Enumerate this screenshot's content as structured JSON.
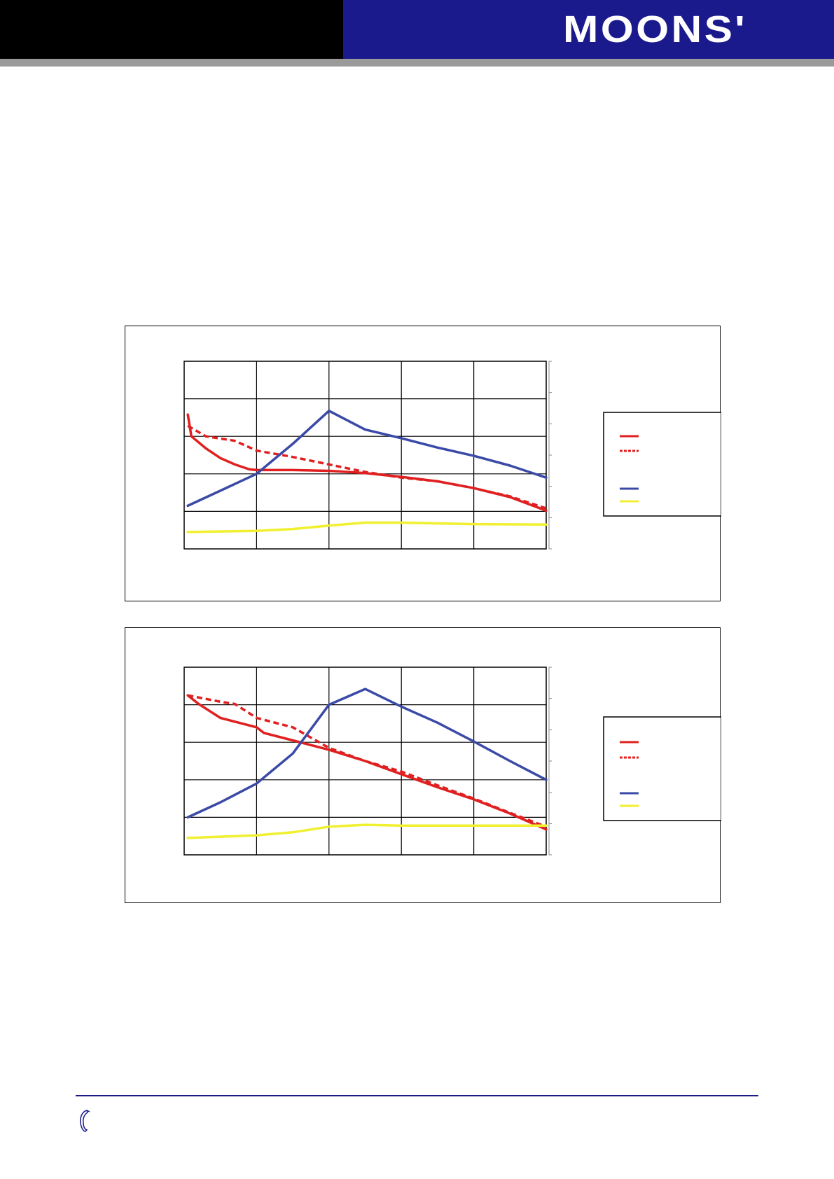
{
  "header": {
    "logo_text": "MOONS'",
    "colors": {
      "left_bar": "#000000",
      "right_bar": "#1a1a8c",
      "rule": "#9a9a9a"
    }
  },
  "footer": {
    "icon": "phone-icon",
    "rule_color": "#1a1a8c"
  },
  "chart_data": [
    {
      "type": "line",
      "title": "",
      "xlabel": "",
      "ylabel": "",
      "x_divisions": 5,
      "y_divisions": 5,
      "right_axis_ticks": 7,
      "grid": true,
      "legend": "right",
      "xlim": [
        0,
        5
      ],
      "ylim": [
        0,
        5
      ],
      "series": [
        {
          "key": "red-solid",
          "color": "#e02020",
          "dash": "solid",
          "points": [
            [
              0.05,
              3.58
            ],
            [
              0.1,
              3.0
            ],
            [
              0.3,
              2.68
            ],
            [
              0.5,
              2.42
            ],
            [
              0.7,
              2.25
            ],
            [
              0.9,
              2.12
            ],
            [
              1.0,
              2.1
            ],
            [
              1.5,
              2.1
            ],
            [
              2.0,
              2.08
            ],
            [
              2.5,
              2.02
            ],
            [
              3.0,
              1.92
            ],
            [
              3.5,
              1.8
            ],
            [
              4.0,
              1.62
            ],
            [
              4.5,
              1.38
            ],
            [
              5.0,
              1.02
            ]
          ]
        },
        {
          "key": "red-dashed",
          "color": "#e02020",
          "dash": "dashed",
          "points": [
            [
              0.05,
              3.28
            ],
            [
              0.3,
              3.0
            ],
            [
              0.7,
              2.88
            ],
            [
              1.0,
              2.62
            ],
            [
              1.5,
              2.45
            ],
            [
              2.0,
              2.25
            ],
            [
              2.5,
              2.05
            ],
            [
              3.0,
              1.9
            ],
            [
              3.5,
              1.8
            ],
            [
              4.0,
              1.62
            ],
            [
              4.5,
              1.4
            ],
            [
              5.0,
              1.08
            ]
          ]
        },
        {
          "key": "blue",
          "color": "#3a4aa6",
          "dash": "solid",
          "points": [
            [
              0.05,
              1.15
            ],
            [
              0.5,
              1.55
            ],
            [
              1.0,
              2.0
            ],
            [
              1.5,
              2.8
            ],
            [
              2.0,
              3.68
            ],
            [
              2.5,
              3.18
            ],
            [
              3.0,
              2.95
            ],
            [
              3.5,
              2.7
            ],
            [
              4.0,
              2.48
            ],
            [
              4.5,
              2.22
            ],
            [
              5.0,
              1.9
            ]
          ]
        },
        {
          "key": "yellow",
          "color": "#f0f030",
          "dash": "solid",
          "points": [
            [
              0.05,
              0.45
            ],
            [
              1.0,
              0.48
            ],
            [
              1.5,
              0.53
            ],
            [
              2.0,
              0.62
            ],
            [
              2.5,
              0.7
            ],
            [
              3.0,
              0.7
            ],
            [
              3.5,
              0.68
            ],
            [
              4.0,
              0.66
            ],
            [
              5.0,
              0.65
            ]
          ]
        }
      ]
    },
    {
      "type": "line",
      "title": "",
      "xlabel": "",
      "ylabel": "",
      "x_divisions": 5,
      "y_divisions": 5,
      "right_axis_ticks": 7,
      "grid": true,
      "legend": "right",
      "xlim": [
        0,
        5
      ],
      "ylim": [
        0,
        5
      ],
      "series": [
        {
          "key": "red-solid",
          "color": "#e02020",
          "dash": "solid",
          "points": [
            [
              0.05,
              4.25
            ],
            [
              0.2,
              4.02
            ],
            [
              0.5,
              3.65
            ],
            [
              1.0,
              3.4
            ],
            [
              1.1,
              3.25
            ],
            [
              1.5,
              3.05
            ],
            [
              2.0,
              2.8
            ],
            [
              2.5,
              2.5
            ],
            [
              3.0,
              2.15
            ],
            [
              3.5,
              1.8
            ],
            [
              4.0,
              1.48
            ],
            [
              4.5,
              1.1
            ],
            [
              5.0,
              0.68
            ]
          ]
        },
        {
          "key": "red-dashed",
          "color": "#e02020",
          "dash": "dashed",
          "points": [
            [
              0.05,
              4.25
            ],
            [
              0.5,
              4.08
            ],
            [
              0.7,
              4.02
            ],
            [
              1.0,
              3.65
            ],
            [
              1.5,
              3.4
            ],
            [
              2.0,
              2.85
            ],
            [
              2.5,
              2.5
            ],
            [
              3.0,
              2.22
            ],
            [
              3.5,
              1.85
            ],
            [
              4.0,
              1.5
            ],
            [
              4.5,
              1.12
            ],
            [
              5.0,
              0.75
            ]
          ]
        },
        {
          "key": "blue",
          "color": "#3a4aa6",
          "dash": "solid",
          "points": [
            [
              0.05,
              1.0
            ],
            [
              0.5,
              1.4
            ],
            [
              1.0,
              1.9
            ],
            [
              1.5,
              2.7
            ],
            [
              2.0,
              4.0
            ],
            [
              2.5,
              4.42
            ],
            [
              3.0,
              3.95
            ],
            [
              3.5,
              3.52
            ],
            [
              4.0,
              3.02
            ],
            [
              4.5,
              2.5
            ],
            [
              5.0,
              2.0
            ]
          ]
        },
        {
          "key": "yellow",
          "color": "#f0f030",
          "dash": "solid",
          "points": [
            [
              0.05,
              0.45
            ],
            [
              1.0,
              0.52
            ],
            [
              1.5,
              0.6
            ],
            [
              2.0,
              0.75
            ],
            [
              2.5,
              0.8
            ],
            [
              3.0,
              0.78
            ],
            [
              4.0,
              0.78
            ],
            [
              5.0,
              0.78
            ]
          ]
        }
      ]
    }
  ]
}
